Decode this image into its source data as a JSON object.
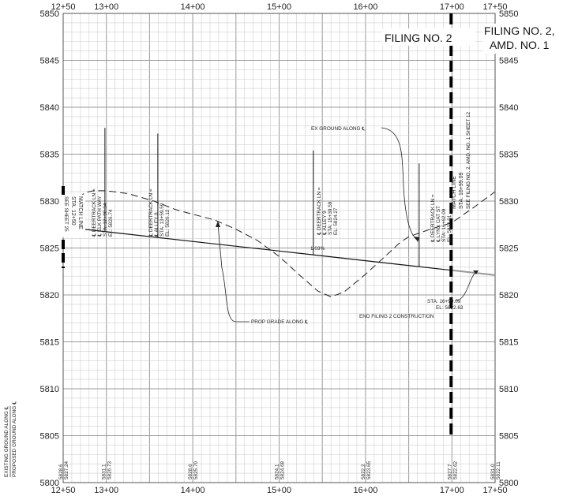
{
  "station_labels": [
    "12+50",
    "13+00",
    "14+00",
    "15+00",
    "16+00",
    "17+00",
    "17+50"
  ],
  "elevation_labels": [
    "5850",
    "5845",
    "5840",
    "5835",
    "5830",
    "5825",
    "5820",
    "5815",
    "5810",
    "5805",
    "5800"
  ],
  "filing_left": "FILING NO. 2",
  "filing_right_line1": "FILING NO. 2,",
  "filing_right_line2": "AMD. NO. 1",
  "left_vertical_label_1": "EXISTING GROUND ALONG ℄",
  "left_vertical_label_2": "PROPOSED GROUND ALONG ℄",
  "match_line_left": {
    "line1": "MATCH LINE",
    "line2": "STA. 12+50",
    "line3": "SEE SHEET 25"
  },
  "match_line_right": {
    "line1": "MATCH LINE",
    "line2": "STA. 16+99.09",
    "line3": "SEE FILING NO. 2, AMD. NO. 1 SHEET 12"
  },
  "intersections": [
    {
      "id": "elk-path",
      "line1": "℄ DEERTRACK LN =",
      "line2": "℄ ELK PATH WAY",
      "line3": "STA: 12+98.34",
      "line4": "EL: 5826.74"
    },
    {
      "id": "alley8",
      "line1": "℄ DEERTRACK LN =",
      "line2": "℄ ALLEY 8",
      "line3": "STA: 13+59.59",
      "line4": "EL: 5826.12"
    },
    {
      "id": "alley9",
      "line1": "℄ DEERTRACK LN =",
      "line2": "℄ ALLEY 9",
      "line3": "STA: 15+39.59",
      "line4": "EL: 5824.27"
    },
    {
      "id": "lynx",
      "line1": "℄ DEERTRACK LN =",
      "line2": "℄ LYNX CAT ST",
      "line3": "STA: 16+62.09",
      "line4": "EL: 5823.01"
    }
  ],
  "grade_label": "1.03%",
  "ex_ground_label": "EX GROUND ALONG ℄",
  "prop_grade_label": "PROP GRADE ALONG ℄",
  "end_note": {
    "line1": "STA: 16+99.09",
    "line2": "EL: 5822.63",
    "line3": "END FILING 2 CONSTRUCTION"
  },
  "bottom_elevations": [
    {
      "existing": "5828.6",
      "proposed": "5827.24"
    },
    {
      "existing": "5831.1",
      "proposed": "5826.73"
    },
    {
      "existing": "5828.6",
      "proposed": "5825.70"
    },
    {
      "existing": "5824.1",
      "proposed": "5824.68"
    },
    {
      "existing": "5822.2",
      "proposed": "5823.65"
    },
    {
      "existing": "5827.7",
      "proposed": "5822.62"
    },
    {
      "existing": "5831.0",
      "proposed": "5822.11"
    }
  ],
  "chart_data": {
    "type": "line",
    "xlabel": "",
    "ylabel": "",
    "xlim": [
      1250,
      1750
    ],
    "ylim": [
      5800,
      5850
    ],
    "grid": true,
    "series": [
      {
        "values": [
          [
            1250,
            5828.6
          ],
          [
            1262,
            5829.8
          ],
          [
            1275,
            5830.9
          ],
          [
            1285,
            5831.1
          ],
          [
            1300,
            5831.1
          ],
          [
            1325,
            5830.8
          ],
          [
            1355,
            5830.0
          ],
          [
            1380,
            5829.1
          ],
          [
            1400,
            5828.6
          ],
          [
            1425,
            5828.0
          ],
          [
            1450,
            5827.0
          ],
          [
            1475,
            5825.8
          ],
          [
            1500,
            5824.1
          ],
          [
            1525,
            5822.0
          ],
          [
            1545,
            5820.4
          ],
          [
            1560,
            5819.8
          ],
          [
            1575,
            5820.3
          ],
          [
            1600,
            5822.2
          ],
          [
            1625,
            5824.3
          ],
          [
            1640,
            5825.6
          ],
          [
            1650,
            5826.2
          ],
          [
            1675,
            5827.0
          ],
          [
            1700,
            5827.7
          ],
          [
            1725,
            5829.3
          ],
          [
            1750,
            5831.0
          ]
        ]
      },
      {
        "values": [
          [
            1250,
            5827.24
          ],
          [
            1300,
            5826.73
          ],
          [
            1400,
            5825.7
          ],
          [
            1500,
            5824.68
          ],
          [
            1600,
            5823.65
          ],
          [
            1700,
            5822.62
          ],
          [
            1750,
            5822.11
          ]
        ]
      }
    ],
    "verticals": [
      {
        "x": 1298.34,
        "y0": 5826.74,
        "y1": 5837.8
      },
      {
        "x": 1359.59,
        "y0": 5826.12,
        "y1": 5837.2
      },
      {
        "x": 1539.59,
        "y0": 5824.27,
        "y1": 5835.4
      },
      {
        "x": 1662.09,
        "y0": 5823.01,
        "y1": 5834.0
      }
    ],
    "filing_boundary_x": 1699.09
  }
}
